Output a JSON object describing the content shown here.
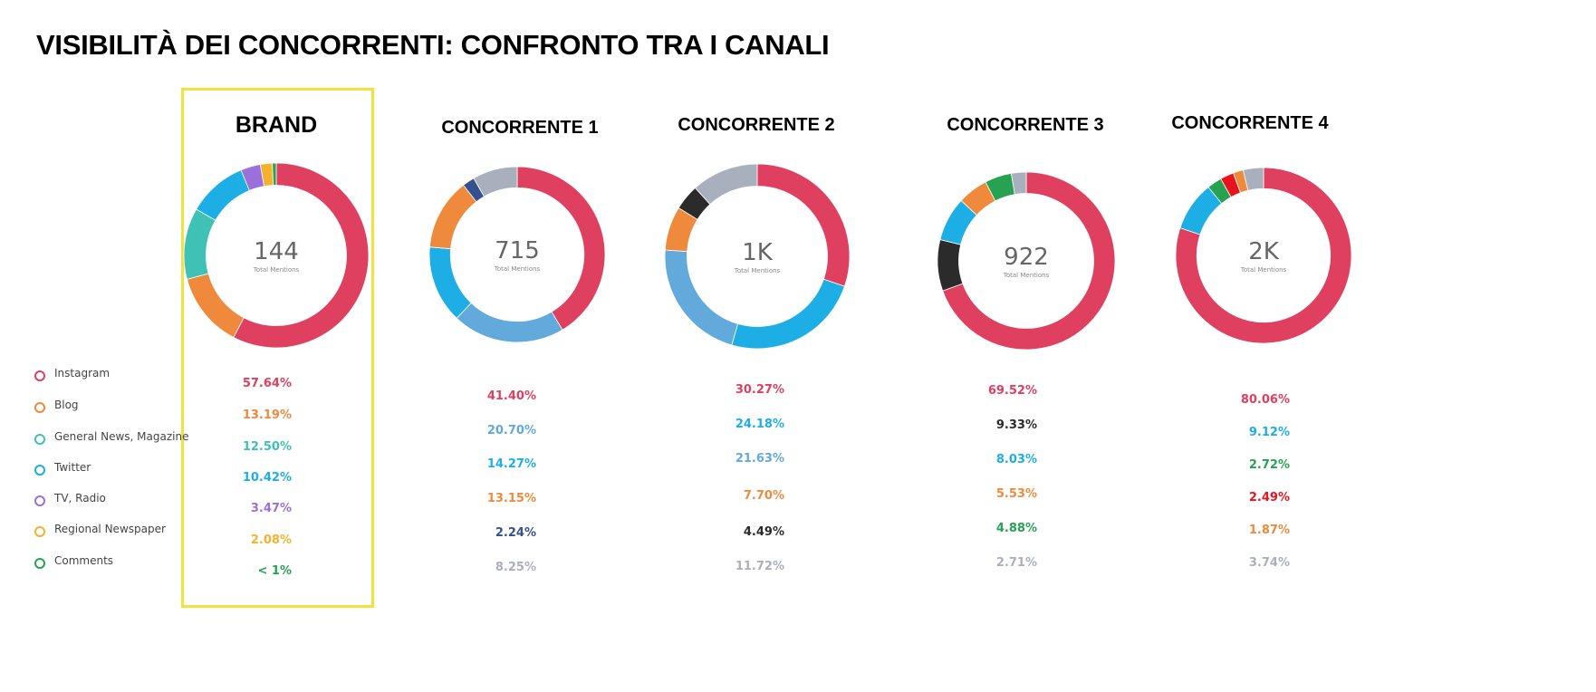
{
  "title": "VISIBILITÀ DEI CONCORRENTI: CONFRONTO TRA I CANALI",
  "center_caption": "Total Mentions",
  "legend": [
    {
      "label": "Instagram",
      "color": "#e0405f"
    },
    {
      "label": "Blog",
      "color": "#ef8a3c"
    },
    {
      "label": "General News, Magazine",
      "color": "#3fc1b5"
    },
    {
      "label": "Twitter",
      "color": "#1eaee6"
    },
    {
      "label": "TV, Radio",
      "color": "#9b6fdc"
    },
    {
      "label": "Regional Newspaper",
      "color": "#f6b22b"
    },
    {
      "label": "Comments",
      "color": "#27a152"
    }
  ],
  "chart_data": [
    {
      "type": "pie",
      "name": "BRAND",
      "total": "144",
      "highlighted": true,
      "values": [
        57.64,
        13.19,
        12.5,
        10.42,
        3.47,
        2.08,
        0.69
      ],
      "labels": [
        "57.64%",
        "13.19%",
        "12.50%",
        "10.42%",
        "3.47%",
        "2.08%",
        "< 1%"
      ],
      "colors": [
        "#e0405f",
        "#ef8a3c",
        "#3fc1b5",
        "#1eaee6",
        "#9b6fdc",
        "#f6b22b",
        "#27a152"
      ]
    },
    {
      "type": "pie",
      "name": "CONCORRENTE 1",
      "total": "715",
      "values": [
        41.4,
        20.7,
        14.27,
        13.15,
        2.24,
        8.25
      ],
      "labels": [
        "41.40%",
        "20.70%",
        "14.27%",
        "13.15%",
        "2.24%",
        "8.25%"
      ],
      "colors": [
        "#e0405f",
        "#62a9dc",
        "#1eaee6",
        "#ef8a3c",
        "#34508f",
        "#a9b0bd"
      ]
    },
    {
      "type": "pie",
      "name": "CONCORRENTE 2",
      "total": "1K",
      "values": [
        30.27,
        24.18,
        21.63,
        7.7,
        4.49,
        11.72
      ],
      "labels": [
        "30.27%",
        "24.18%",
        "21.63%",
        "7.70%",
        "4.49%",
        "11.72%"
      ],
      "colors": [
        "#e0405f",
        "#1eaee6",
        "#62a9dc",
        "#ef8a3c",
        "#2b2b2b",
        "#a9b0bd"
      ]
    },
    {
      "type": "pie",
      "name": "CONCORRENTE 3",
      "total": "922",
      "values": [
        69.52,
        9.33,
        8.03,
        5.53,
        4.88,
        2.71
      ],
      "labels": [
        "69.52%",
        "9.33%",
        "8.03%",
        "5.53%",
        "4.88%",
        "2.71%"
      ],
      "colors": [
        "#e0405f",
        "#2b2b2b",
        "#1eaee6",
        "#ef8a3c",
        "#27a152",
        "#a9b0bd"
      ]
    },
    {
      "type": "pie",
      "name": "CONCORRENTE 4",
      "total": "2K",
      "values": [
        80.06,
        9.12,
        2.72,
        2.49,
        1.87,
        3.74
      ],
      "labels": [
        "80.06%",
        "9.12%",
        "2.72%",
        "2.49%",
        "1.87%",
        "3.74%"
      ],
      "colors": [
        "#e0405f",
        "#1eaee6",
        "#27a152",
        "#e8141d",
        "#ef8a3c",
        "#a9b0bd"
      ]
    }
  ]
}
